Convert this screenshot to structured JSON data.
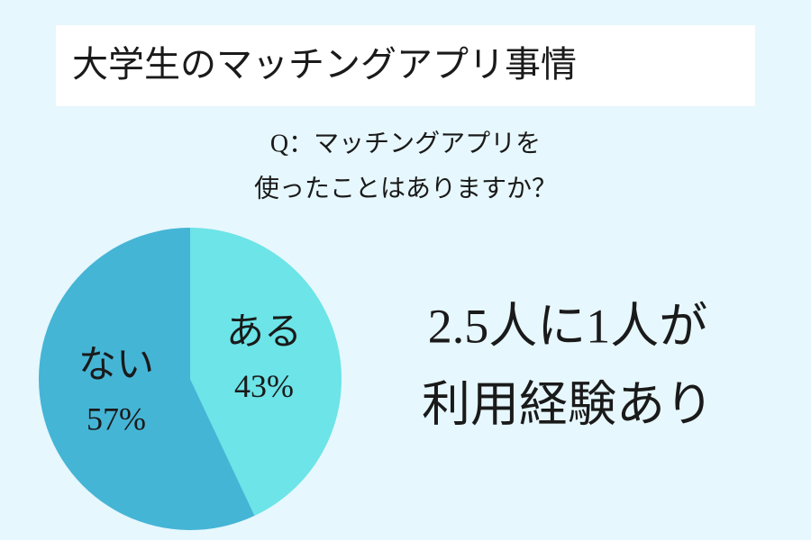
{
  "chart_data": {
    "type": "pie",
    "title": "大学生のマッチングアプリ事情",
    "subtitle": [
      "Q：マッチングアプリを",
      "使ったことはありますか？"
    ],
    "categories": [
      "ある",
      "ない"
    ],
    "values": [
      43,
      57
    ],
    "value_labels": [
      "43%",
      "57%"
    ],
    "colors": [
      "#6ce4e8",
      "#45b5d6"
    ],
    "annotations": [
      "2.5人に1人が",
      "利用経験あり"
    ]
  }
}
